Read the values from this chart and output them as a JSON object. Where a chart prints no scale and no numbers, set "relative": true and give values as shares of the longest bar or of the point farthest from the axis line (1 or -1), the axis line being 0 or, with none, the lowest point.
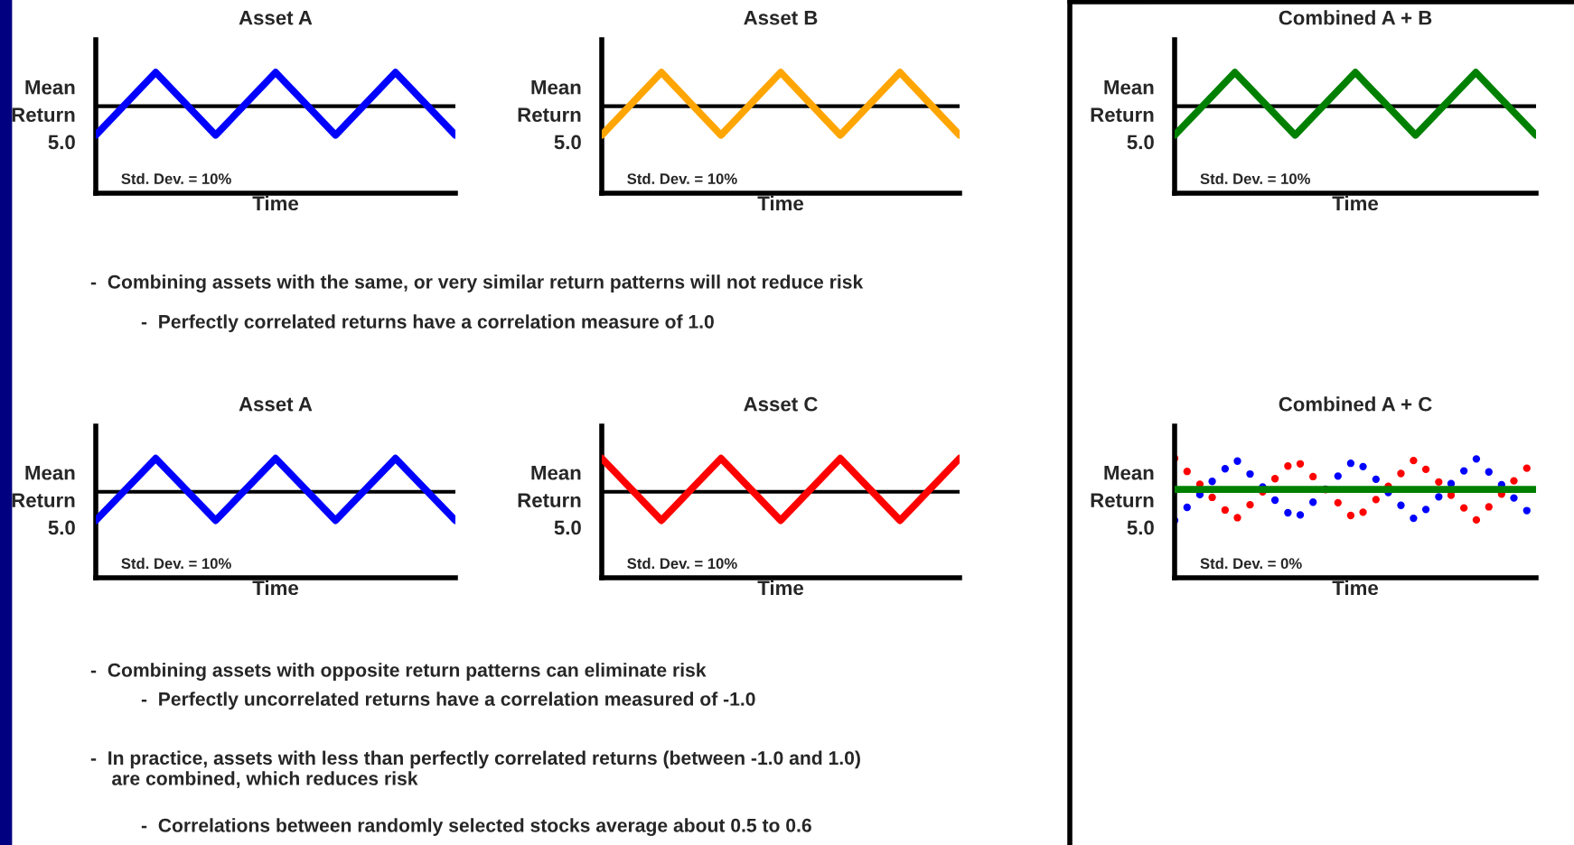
{
  "chart_data": [
    {
      "type": "line",
      "title": "Asset A",
      "xlabel": "Time",
      "ylabel": "Mean\nReturn\n5.0",
      "relative": true,
      "tick_labels": false,
      "categories": [
        null,
        null,
        null,
        null,
        null,
        null,
        null
      ],
      "series": [
        {
          "color": "#0000ff",
          "values": [
            0.48,
            1,
            0.48,
            1,
            0.48,
            1,
            0.48
          ]
        }
      ],
      "ref_lines": [
        {
          "axis": "y",
          "value": 0.72,
          "color": "#000000"
        }
      ],
      "annotations": [
        "Std. Dev. = 10%"
      ]
    },
    {
      "type": "line",
      "title": "Asset B",
      "xlabel": "Time",
      "ylabel": "Mean\nReturn\n5.0",
      "relative": true,
      "tick_labels": false,
      "categories": [
        null,
        null,
        null,
        null,
        null,
        null,
        null
      ],
      "series": [
        {
          "color": "#ffa500",
          "values": [
            0.48,
            1,
            0.48,
            1,
            0.48,
            1,
            0.48
          ]
        }
      ],
      "ref_lines": [
        {
          "axis": "y",
          "value": 0.72,
          "color": "#000000"
        }
      ],
      "annotations": [
        "Std. Dev. = 10%"
      ]
    },
    {
      "type": "line",
      "title": "Combined A + B",
      "xlabel": "Time",
      "ylabel": "Mean\nReturn\n5.0",
      "relative": true,
      "tick_labels": false,
      "categories": [
        null,
        null,
        null,
        null,
        null,
        null,
        null
      ],
      "series": [
        {
          "color": "#008000",
          "values": [
            0.48,
            1,
            0.48,
            1,
            0.48,
            1,
            0.48
          ]
        }
      ],
      "ref_lines": [
        {
          "axis": "y",
          "value": 0.72,
          "color": "#000000"
        }
      ],
      "annotations": [
        "Std. Dev. = 10%"
      ]
    },
    {
      "type": "line",
      "title": "Asset A",
      "xlabel": "Time",
      "ylabel": "Mean\nReturn\n5.0",
      "relative": true,
      "tick_labels": false,
      "categories": [
        null,
        null,
        null,
        null,
        null,
        null,
        null
      ],
      "series": [
        {
          "color": "#0000ff",
          "values": [
            0.48,
            1,
            0.48,
            1,
            0.48,
            1,
            0.48
          ]
        }
      ],
      "ref_lines": [
        {
          "axis": "y",
          "value": 0.72,
          "color": "#000000"
        }
      ],
      "annotations": [
        "Std. Dev. = 10%"
      ]
    },
    {
      "type": "line",
      "title": "Asset C",
      "xlabel": "Time",
      "ylabel": "Mean\nReturn\n5.0",
      "relative": true,
      "tick_labels": false,
      "categories": [
        null,
        null,
        null,
        null,
        null,
        null,
        null
      ],
      "series": [
        {
          "color": "#ff0000",
          "values": [
            1,
            0.48,
            1,
            0.48,
            1,
            0.48,
            1
          ]
        }
      ],
      "ref_lines": [
        {
          "axis": "y",
          "value": 0.72,
          "color": "#000000"
        }
      ],
      "annotations": [
        "Std. Dev. = 10%"
      ]
    },
    {
      "type": "line",
      "title": "Combined A + C",
      "xlabel": "Time",
      "ylabel": "Mean\nReturn\n5.0",
      "relative": true,
      "tick_labels": false,
      "categories": [
        null,
        null,
        null,
        null,
        null,
        null,
        null,
        null,
        null,
        null,
        null,
        null,
        null,
        null,
        null,
        null,
        null,
        null,
        null,
        null,
        null,
        null,
        null,
        null,
        null,
        null,
        null,
        null,
        null,
        null,
        null,
        null,
        null,
        null,
        null,
        null,
        null
      ],
      "series": [
        {
          "type": "line",
          "line_style": "dotted",
          "color": "#0000ff",
          "values": [
            0.48,
            0.57,
            0.65,
            0.74,
            0.83,
            0.91,
            1,
            0.91,
            0.83,
            0.74,
            0.65,
            0.57,
            0.48,
            0.57,
            0.65,
            0.74,
            0.83,
            0.91,
            1,
            0.91,
            0.83,
            0.74,
            0.65,
            0.57,
            0.48,
            0.57,
            0.65,
            0.74,
            0.83,
            0.91,
            1,
            0.91,
            0.83,
            0.74,
            0.65,
            0.57,
            0.48
          ]
        },
        {
          "type": "line",
          "line_style": "dotted",
          "color": "#ff0000",
          "values": [
            1,
            0.91,
            0.83,
            0.74,
            0.65,
            0.57,
            0.48,
            0.57,
            0.65,
            0.74,
            0.83,
            0.91,
            1,
            0.91,
            0.83,
            0.74,
            0.65,
            0.57,
            0.48,
            0.57,
            0.65,
            0.74,
            0.83,
            0.91,
            1,
            0.91,
            0.83,
            0.74,
            0.65,
            0.57,
            0.48,
            0.57,
            0.65,
            0.74,
            0.83,
            0.91,
            1
          ]
        },
        {
          "type": "line",
          "color": "#008000",
          "values": [
            0.74,
            0.74,
            0.74,
            0.74,
            0.74,
            0.74,
            0.74,
            0.74,
            0.74,
            0.74,
            0.74,
            0.74,
            0.74,
            0.74,
            0.74,
            0.74,
            0.74,
            0.74,
            0.74,
            0.74,
            0.74,
            0.74,
            0.74,
            0.74,
            0.74,
            0.74,
            0.74,
            0.74,
            0.74,
            0.74,
            0.74,
            0.74,
            0.74,
            0.74,
            0.74,
            0.74,
            0.74
          ]
        }
      ],
      "annotations": [
        "Std. Dev. = 0%"
      ]
    },
    {
      "type": "other",
      "annotations": [
        "-  Combining assets with the same, or very similar return patterns will not reduce risk",
        "-  Perfectly correlated returns have a correlation measure of 1.0",
        "-  Combining assets with opposite return patterns can eliminate risk",
        "-  Perfectly uncorrelated returns have a correlation measured of -1.0",
        "-  In practice, assets with less than perfectly correlated returns (between -1.0 and 1.0)\n    are combined, which reduces risk",
        "-  Correlations between randomly selected stocks average about 0.5 to 0.6"
      ]
    }
  ]
}
